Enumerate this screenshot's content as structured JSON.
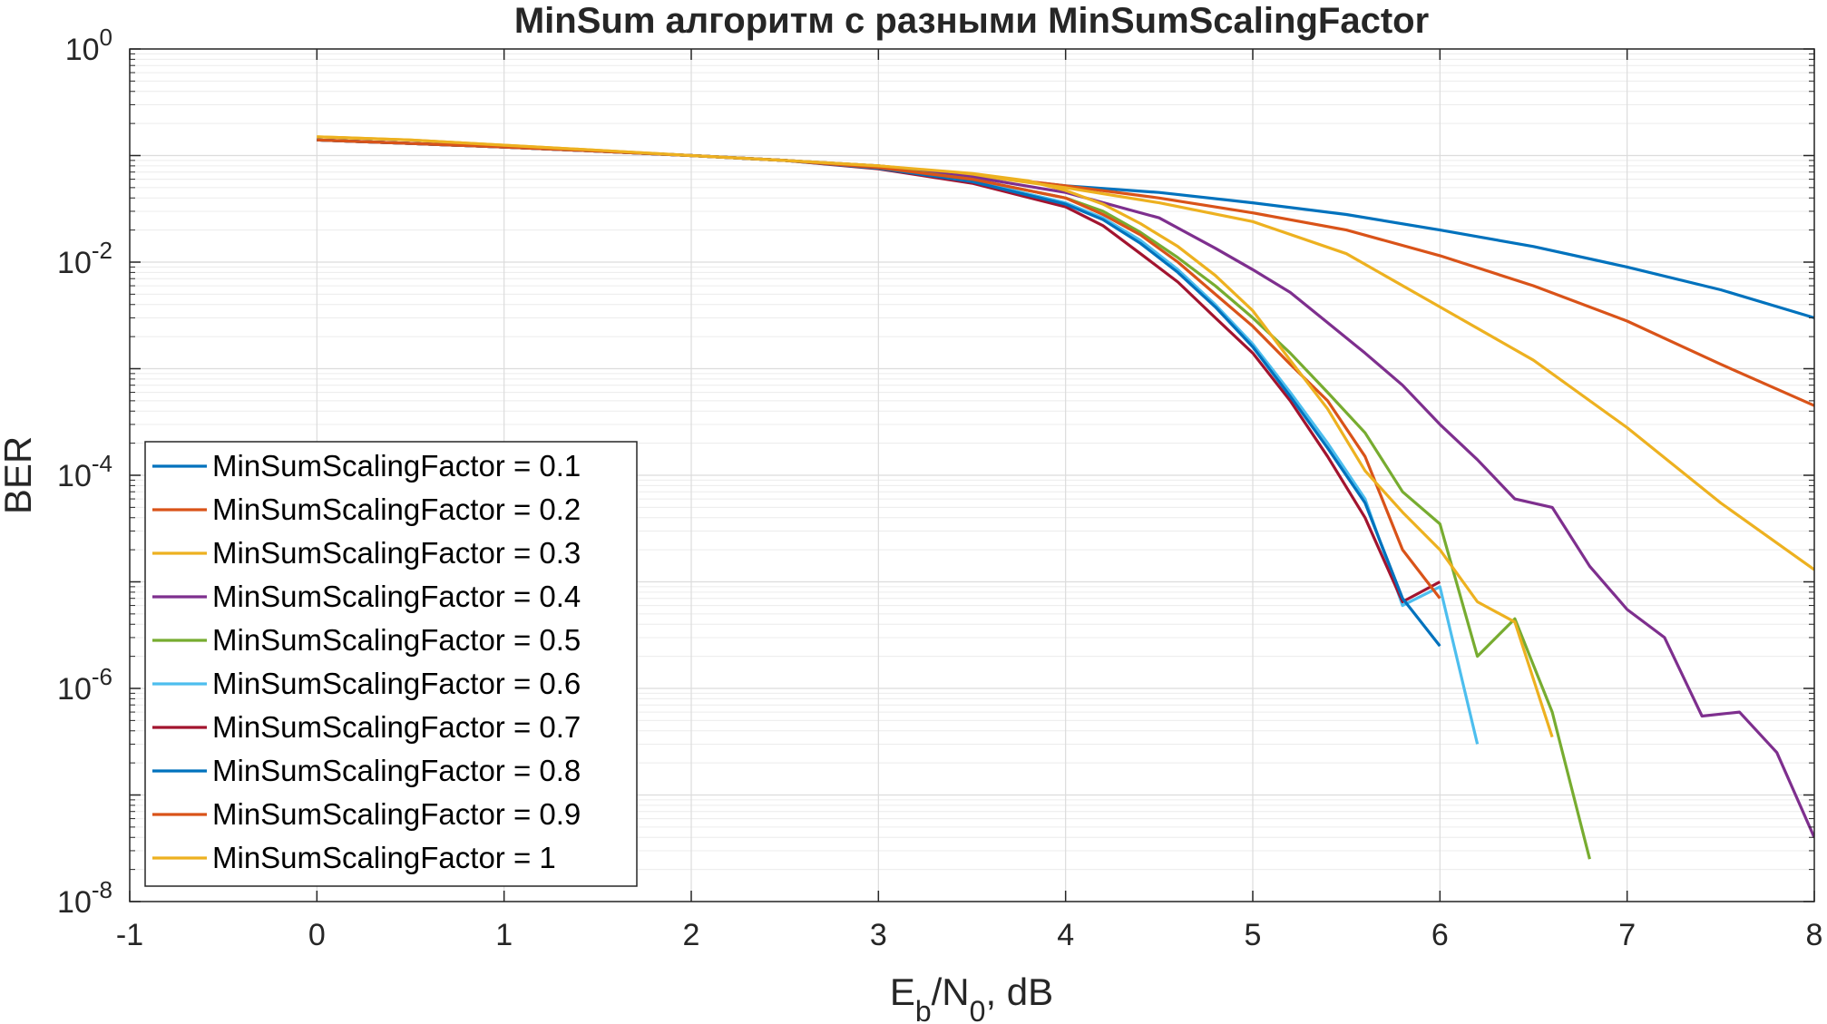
{
  "chart_data": {
    "type": "line",
    "title": "MinSum алгоритм с разными MinSumScalingFactor",
    "xlabel": {
      "main": "E",
      "sub1": "b",
      "mid": "/N",
      "sub2": "0",
      "tail": ", dB"
    },
    "ylabel": "BER",
    "xlim": [
      -1,
      8
    ],
    "ylim": [
      1e-08,
      1
    ],
    "yscale": "log",
    "grid": true,
    "x_ticks": [
      "-1",
      "0",
      "1",
      "2",
      "3",
      "4",
      "5",
      "6",
      "7",
      "8"
    ],
    "y_ticks": [
      {
        "base": "10",
        "exp": "0"
      },
      {
        "base": "10",
        "exp": "-2"
      },
      {
        "base": "10",
        "exp": "-4"
      },
      {
        "base": "10",
        "exp": "-6"
      },
      {
        "base": "10",
        "exp": "-8"
      }
    ],
    "legend_position": "bottom-left",
    "series": [
      {
        "name": "MinSumScalingFactor = 0.1",
        "color": "#0072BD",
        "x": [
          0,
          0.5,
          1,
          1.5,
          2,
          2.5,
          3,
          3.5,
          4,
          4.5,
          5,
          5.5,
          6,
          6.5,
          7,
          7.5,
          8
        ],
        "y": [
          0.14,
          0.13,
          0.12,
          0.11,
          0.1,
          0.09,
          0.08,
          0.065,
          0.052,
          0.045,
          0.036,
          0.028,
          0.02,
          0.014,
          0.009,
          0.0055,
          0.003
        ]
      },
      {
        "name": "MinSumScalingFactor = 0.2",
        "color": "#D95319",
        "x": [
          0,
          0.5,
          1,
          1.5,
          2,
          2.5,
          3,
          3.5,
          4,
          4.5,
          5,
          5.5,
          6,
          6.5,
          7,
          7.5,
          8
        ],
        "y": [
          0.14,
          0.13,
          0.12,
          0.11,
          0.1,
          0.09,
          0.08,
          0.066,
          0.052,
          0.04,
          0.029,
          0.02,
          0.0115,
          0.006,
          0.0028,
          0.0011,
          0.00045
        ]
      },
      {
        "name": "MinSumScalingFactor = 0.3",
        "color": "#EDB120",
        "x": [
          0,
          0.5,
          1,
          1.5,
          2,
          2.5,
          3,
          3.5,
          4,
          4.5,
          5,
          5.5,
          6,
          6.5,
          7,
          7.5,
          8
        ],
        "y": [
          0.15,
          0.14,
          0.125,
          0.112,
          0.1,
          0.09,
          0.08,
          0.066,
          0.05,
          0.036,
          0.024,
          0.012,
          0.0038,
          0.0012,
          0.00028,
          5.5e-05,
          1.3e-05
        ]
      },
      {
        "name": "MinSumScalingFactor = 0.4",
        "color": "#7E2F8E",
        "x": [
          0,
          0.5,
          1,
          1.5,
          2,
          2.5,
          3,
          3.5,
          4,
          4.5,
          4.8,
          5,
          5.2,
          5.4,
          5.6,
          5.8,
          6,
          6.2,
          6.4,
          6.6,
          6.8,
          7,
          7.2,
          7.4,
          7.6,
          7.8,
          8
        ],
        "y": [
          0.14,
          0.13,
          0.12,
          0.11,
          0.1,
          0.09,
          0.079,
          0.063,
          0.045,
          0.026,
          0.0135,
          0.0085,
          0.0052,
          0.0027,
          0.0014,
          0.0007,
          0.0003,
          0.00014,
          6e-05,
          5e-05,
          1.4e-05,
          5.5e-06,
          3e-06,
          5.5e-07,
          6e-07,
          2.5e-07,
          4e-08
        ]
      },
      {
        "name": "MinSumScalingFactor = 0.5",
        "color": "#77AC30",
        "x": [
          0,
          0.5,
          1,
          1.5,
          2,
          2.5,
          3,
          3.5,
          4,
          4.2,
          4.4,
          4.6,
          4.8,
          5,
          5.2,
          5.4,
          5.6,
          5.8,
          6,
          6.2,
          6.4,
          6.6,
          6.8
        ],
        "y": [
          0.14,
          0.13,
          0.12,
          0.11,
          0.1,
          0.09,
          0.078,
          0.06,
          0.04,
          0.03,
          0.019,
          0.011,
          0.006,
          0.003,
          0.0014,
          0.0006,
          0.00025,
          7e-05,
          3.5e-05,
          2e-06,
          4.5e-06,
          6e-07,
          2.5e-08
        ]
      },
      {
        "name": "MinSumScalingFactor = 0.6",
        "color": "#4DBEEE",
        "x": [
          0,
          0.5,
          1,
          1.5,
          2,
          2.5,
          3,
          3.5,
          4,
          4.2,
          4.4,
          4.6,
          4.8,
          5,
          5.2,
          5.4,
          5.6,
          5.8,
          6,
          6.2
        ],
        "y": [
          0.14,
          0.13,
          0.12,
          0.11,
          0.1,
          0.09,
          0.077,
          0.058,
          0.036,
          0.026,
          0.016,
          0.0085,
          0.004,
          0.0017,
          0.0006,
          0.0002,
          6e-05,
          6e-06,
          9e-06,
          3e-07
        ]
      },
      {
        "name": "MinSumScalingFactor = 0.7",
        "color": "#A2142F",
        "x": [
          0,
          0.5,
          1,
          1.5,
          2,
          2.5,
          3,
          3.5,
          4,
          4.2,
          4.4,
          4.6,
          4.8,
          5,
          5.2,
          5.4,
          5.6,
          5.8,
          6
        ],
        "y": [
          0.14,
          0.13,
          0.12,
          0.11,
          0.1,
          0.09,
          0.075,
          0.055,
          0.033,
          0.022,
          0.012,
          0.0065,
          0.003,
          0.0014,
          0.0005,
          0.00015,
          4e-05,
          6.5e-06,
          1e-05
        ]
      },
      {
        "name": "MinSumScalingFactor = 0.8",
        "color": "#0072BD",
        "x": [
          0,
          0.5,
          1,
          1.5,
          2,
          2.5,
          3,
          3.5,
          4,
          4.2,
          4.4,
          4.6,
          4.8,
          5,
          5.2,
          5.4,
          5.6,
          5.8,
          6
        ],
        "y": [
          0.14,
          0.13,
          0.12,
          0.11,
          0.1,
          0.09,
          0.076,
          0.057,
          0.035,
          0.025,
          0.015,
          0.008,
          0.0038,
          0.0016,
          0.00055,
          0.00018,
          5.5e-05,
          7e-06,
          2.5e-06
        ]
      },
      {
        "name": "MinSumScalingFactor = 0.9",
        "color": "#D95319",
        "x": [
          0,
          0.5,
          1,
          1.5,
          2,
          2.5,
          3,
          3.5,
          4,
          4.2,
          4.4,
          4.6,
          4.8,
          5,
          5.2,
          5.4,
          5.6,
          5.8,
          6
        ],
        "y": [
          0.14,
          0.13,
          0.12,
          0.11,
          0.1,
          0.09,
          0.077,
          0.06,
          0.04,
          0.028,
          0.018,
          0.01,
          0.005,
          0.0025,
          0.0011,
          0.0005,
          0.00015,
          2e-05,
          7e-06
        ]
      },
      {
        "name": "MinSumScalingFactor = 1",
        "color": "#EDB120",
        "x": [
          0,
          0.5,
          1,
          1.5,
          2,
          2.5,
          3,
          3.5,
          3.8,
          4,
          4.2,
          4.4,
          4.6,
          4.8,
          5,
          5.2,
          5.4,
          5.6,
          5.8,
          6,
          6.2,
          6.4,
          6.6
        ],
        "y": [
          0.15,
          0.14,
          0.125,
          0.112,
          0.1,
          0.09,
          0.08,
          0.068,
          0.058,
          0.047,
          0.035,
          0.023,
          0.014,
          0.0075,
          0.0035,
          0.0012,
          0.00042,
          0.00011,
          4.5e-05,
          2e-05,
          6.5e-06,
          4.2e-06,
          3.5e-07
        ]
      }
    ]
  }
}
